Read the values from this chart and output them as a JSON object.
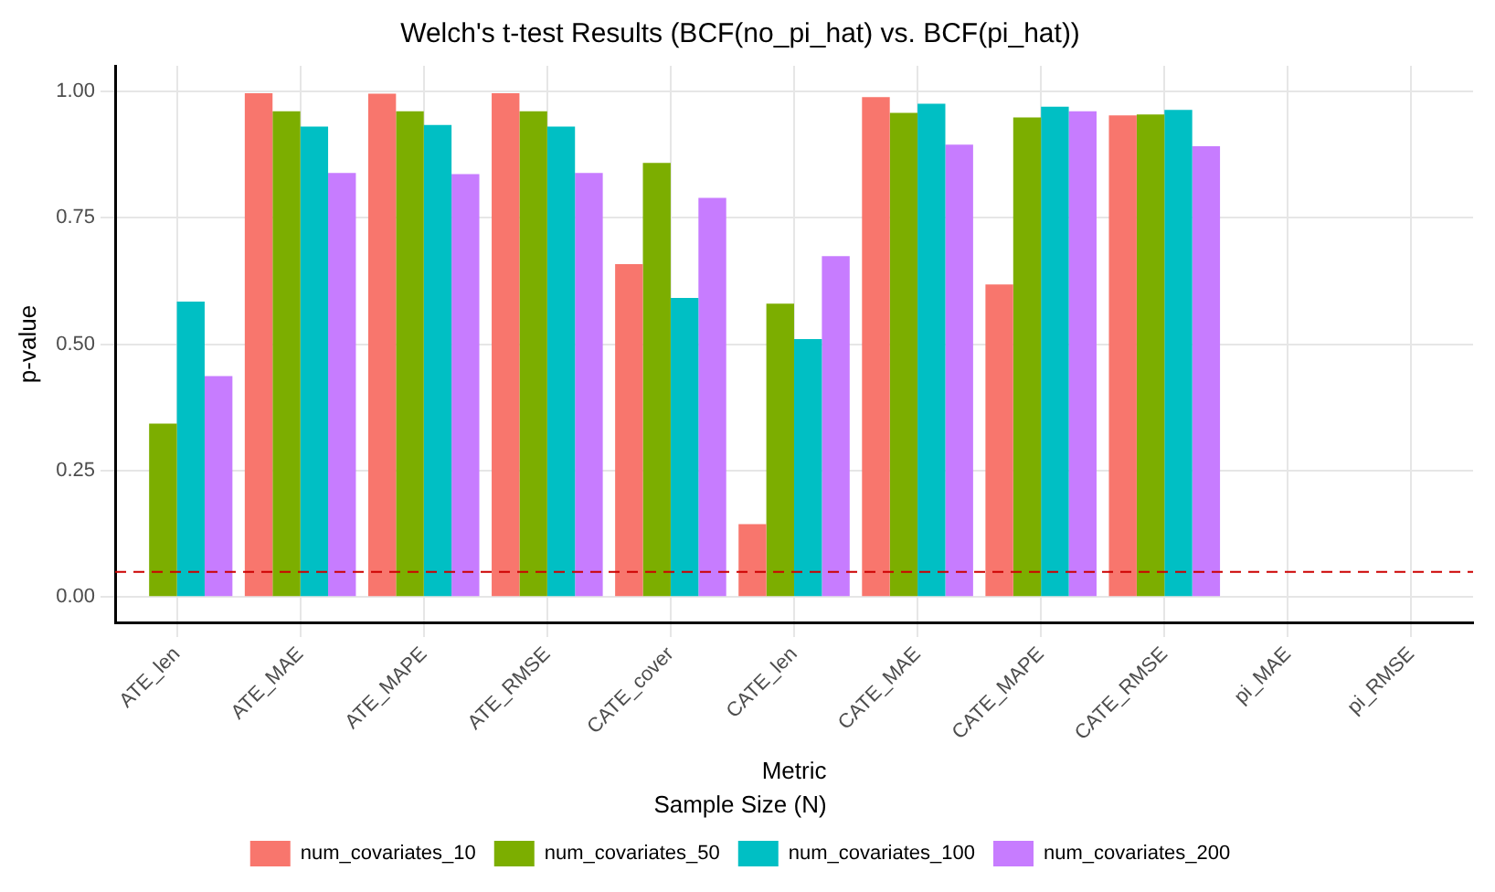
{
  "chart_data": {
    "type": "bar",
    "title": "Welch's t-test Results (BCF(no_pi_hat) vs. BCF(pi_hat))",
    "xlabel": "Metric",
    "ylabel": "p-value",
    "legend_title": "Sample Size (N)",
    "categories": [
      "ATE_len",
      "ATE_MAE",
      "ATE_MAPE",
      "ATE_RMSE",
      "CATE_cover",
      "CATE_len",
      "CATE_MAE",
      "CATE_MAPE",
      "CATE_RMSE",
      "pi_MAE",
      "pi_RMSE"
    ],
    "series": [
      {
        "name": "num_covariates_10",
        "color": "#f8766d",
        "values": [
          0,
          0.996,
          0.995,
          0.996,
          0.658,
          0.144,
          0.988,
          0.618,
          0.952,
          null,
          null
        ]
      },
      {
        "name": "num_covariates_50",
        "color": "#7cae00",
        "values": [
          0.343,
          0.96,
          0.96,
          0.96,
          0.858,
          0.58,
          0.957,
          0.948,
          0.954,
          null,
          null
        ]
      },
      {
        "name": "num_covariates_100",
        "color": "#00bfc4",
        "values": [
          0.584,
          0.93,
          0.933,
          0.93,
          0.591,
          0.51,
          0.975,
          0.969,
          0.963,
          null,
          null
        ]
      },
      {
        "name": "num_covariates_200",
        "color": "#c77cff",
        "values": [
          0.437,
          0.838,
          0.836,
          0.838,
          0.789,
          0.674,
          0.894,
          0.96,
          0.891,
          null,
          null
        ]
      }
    ],
    "ylim": [
      -0.05,
      1.05
    ],
    "yticks": [
      {
        "value": 0,
        "label": "0.00"
      },
      {
        "value": 0.25,
        "label": "0.25"
      },
      {
        "value": 0.5,
        "label": "0.50"
      },
      {
        "value": 0.75,
        "label": "0.75"
      },
      {
        "value": 1,
        "label": "1.00"
      }
    ],
    "ref_lines": [
      {
        "axis": "y",
        "value": 0.05,
        "color": "#cc0000",
        "line_style": "dashed"
      }
    ],
    "grid": true,
    "legend": "bottom"
  }
}
